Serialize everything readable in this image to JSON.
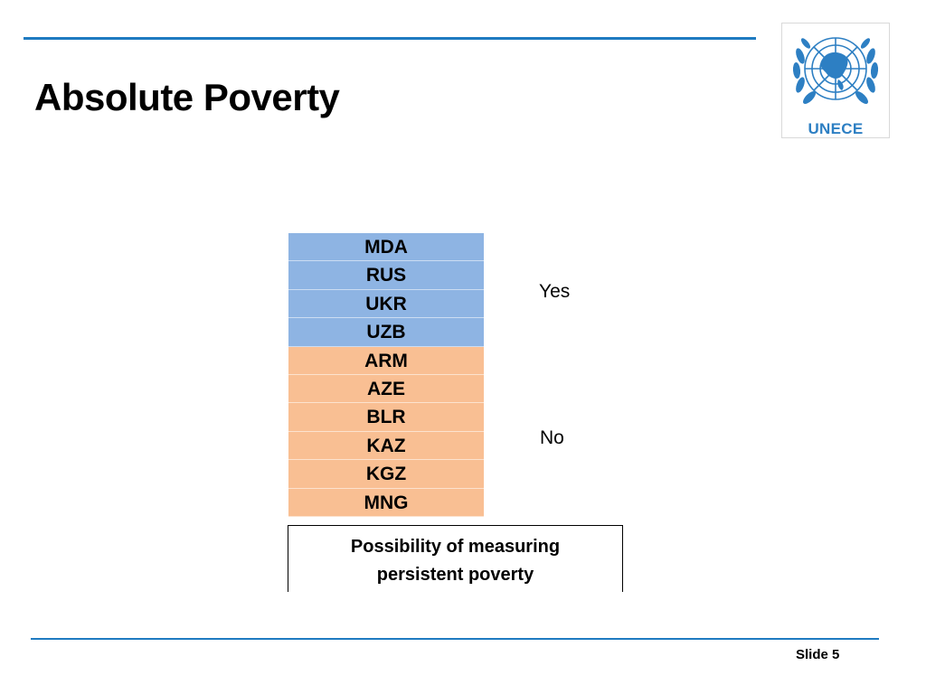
{
  "slide": {
    "title": "Absolute Poverty",
    "logo_text": "UNECE",
    "slide_number": "Slide 5"
  },
  "colors": {
    "rule": "#1f7bc1",
    "yes_fill": "#8eb4e3",
    "no_fill": "#f9bf93",
    "logo": "#2d7fc3"
  },
  "table": {
    "yes_countries": [
      "MDA",
      "RUS",
      "UKR",
      "UZB"
    ],
    "no_countries": [
      "ARM",
      "AZE",
      "BLR",
      "KAZ",
      "KGZ",
      "MNG"
    ],
    "yes_label": "Yes",
    "no_label": "No",
    "footer": "Possibility of measuring persistent poverty"
  },
  "icons": [
    "un-emblem-icon"
  ]
}
